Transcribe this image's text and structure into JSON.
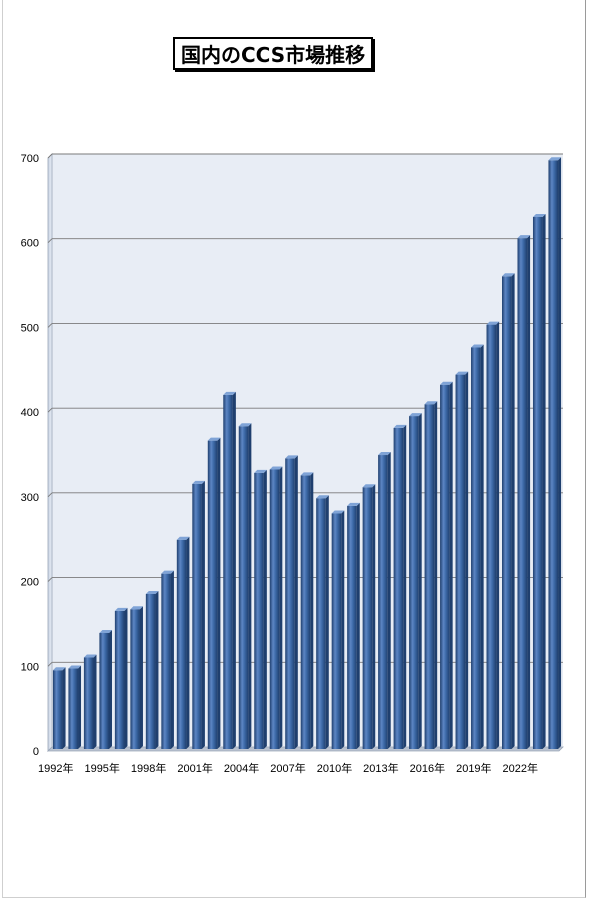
{
  "chart_data": {
    "type": "bar",
    "title": "国内のCCS市場推移",
    "categories": [
      "1992年",
      "1993年",
      "1994年",
      "1995年",
      "1996年",
      "1997年",
      "1998年",
      "1999年",
      "2000年",
      "2001年",
      "2002年",
      "2003年",
      "2004年",
      "2005年",
      "2006年",
      "2007年",
      "2008年",
      "2009年",
      "2010年",
      "2011年",
      "2012年",
      "2013年",
      "2014年",
      "2015年",
      "2016年",
      "2017年",
      "2018年",
      "2019年",
      "2020年",
      "2021年",
      "2022年",
      "2023年",
      "2024年"
    ],
    "x_tick_labels": [
      "1992年",
      "1995年",
      "1998年",
      "2001年",
      "2004年",
      "2007年",
      "2010年",
      "2013年",
      "2016年",
      "2019年",
      "2022年"
    ],
    "values": [
      93,
      95,
      108,
      137,
      163,
      165,
      183,
      207,
      247,
      313,
      364,
      418,
      381,
      326,
      330,
      343,
      323,
      296,
      278,
      287,
      309,
      347,
      379,
      393,
      407,
      430,
      442,
      474,
      501,
      558,
      603,
      628,
      695
    ],
    "ylim": [
      0,
      700
    ],
    "y_ticks": [
      0,
      100,
      200,
      300,
      400,
      500,
      600,
      700
    ],
    "xlabel": "",
    "ylabel": "",
    "grid": true,
    "legend": "none",
    "colors": {
      "bar": "#3d6aa8",
      "bar_dark": "#1f3f6e",
      "bar_light": "#7fa3d6",
      "plot_bg": "#e8edf5",
      "grid": "#7a7a7a"
    }
  }
}
